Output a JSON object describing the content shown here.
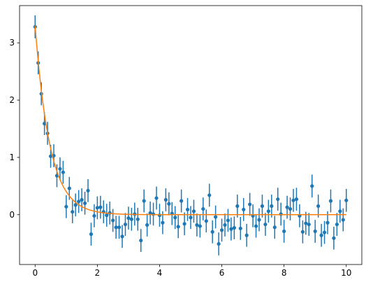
{
  "chart_data": {
    "type": "scatter",
    "title": "",
    "xlabel": "",
    "ylabel": "",
    "xlim": [
      -0.5,
      10.5
    ],
    "ylim": [
      -0.87,
      3.65
    ],
    "grid": false,
    "x_ticks": [
      {
        "value": 0,
        "label": "0"
      },
      {
        "value": 2,
        "label": "2"
      },
      {
        "value": 4,
        "label": "4"
      },
      {
        "value": 6,
        "label": "6"
      },
      {
        "value": 8,
        "label": "8"
      },
      {
        "value": 10,
        "label": "10"
      }
    ],
    "y_ticks": [
      {
        "value": 0,
        "label": "0"
      },
      {
        "value": 1,
        "label": "1"
      },
      {
        "value": 2,
        "label": "2"
      },
      {
        "value": 3,
        "label": "3"
      }
    ],
    "colors": {
      "points": "#1f77b4",
      "fit_line": "#ff7f0e",
      "axes": "#000000"
    },
    "series": [
      {
        "kind": "errorbar",
        "error": 0.2,
        "x": [
          0.0,
          0.1,
          0.2,
          0.3,
          0.4,
          0.5,
          0.6,
          0.7,
          0.8,
          0.9,
          1.0,
          1.1,
          1.2,
          1.3,
          1.4,
          1.5,
          1.6,
          1.7,
          1.8,
          1.9,
          2.0,
          2.1,
          2.2,
          2.3,
          2.4,
          2.5,
          2.6,
          2.7,
          2.8,
          2.9,
          3.0,
          3.1,
          3.2,
          3.3,
          3.4,
          3.5,
          3.6,
          3.7,
          3.8,
          3.9,
          4.0,
          4.1,
          4.2,
          4.3,
          4.4,
          4.5,
          4.6,
          4.7,
          4.8,
          4.9,
          5.0,
          5.1,
          5.2,
          5.3,
          5.4,
          5.5,
          5.6,
          5.7,
          5.8,
          5.9,
          6.0,
          6.1,
          6.2,
          6.3,
          6.4,
          6.5,
          6.6,
          6.7,
          6.8,
          6.9,
          7.0,
          7.1,
          7.2,
          7.3,
          7.4,
          7.5,
          7.6,
          7.7,
          7.8,
          7.9,
          8.0,
          8.1,
          8.2,
          8.3,
          8.4,
          8.5,
          8.6,
          8.7,
          8.8,
          8.9,
          9.0,
          9.1,
          9.2,
          9.3,
          9.4,
          9.5,
          9.6,
          9.7,
          9.8,
          9.9,
          10.0
        ],
        "y": [
          3.28,
          2.65,
          2.11,
          1.59,
          1.42,
          1.02,
          1.03,
          0.68,
          0.8,
          0.74,
          0.14,
          0.46,
          0.05,
          0.17,
          0.23,
          0.26,
          0.2,
          0.42,
          -0.34,
          -0.02,
          0.12,
          0.13,
          0.05,
          -0.01,
          0.03,
          -0.1,
          -0.22,
          -0.22,
          -0.38,
          -0.17,
          -0.06,
          -0.08,
          0.01,
          -0.08,
          -0.45,
          0.24,
          -0.18,
          0.03,
          0.01,
          0.29,
          -0.01,
          -0.14,
          0.26,
          0.19,
          0.02,
          -0.05,
          -0.21,
          0.24,
          -0.16,
          0.09,
          -0.05,
          0.06,
          -0.18,
          -0.2,
          0.1,
          -0.11,
          0.34,
          -0.3,
          -0.04,
          -0.51,
          -0.27,
          -0.18,
          -0.1,
          -0.25,
          -0.23,
          0.15,
          -0.24,
          0.09,
          -0.36,
          0.18,
          -0.02,
          -0.2,
          -0.09,
          0.15,
          -0.17,
          0.06,
          0.15,
          -0.22,
          0.27,
          0.01,
          -0.29,
          0.13,
          0.1,
          0.25,
          0.27,
          -0.02,
          -0.3,
          -0.15,
          -0.17,
          0.5,
          -0.29,
          0.15,
          -0.36,
          -0.31,
          -0.14,
          0.24,
          -0.41,
          -0.17,
          0.06,
          -0.09,
          0.25
        ]
      },
      {
        "kind": "line",
        "function": "3.3 * exp(-2.1 * x)",
        "x_range": [
          0,
          10
        ]
      }
    ]
  }
}
